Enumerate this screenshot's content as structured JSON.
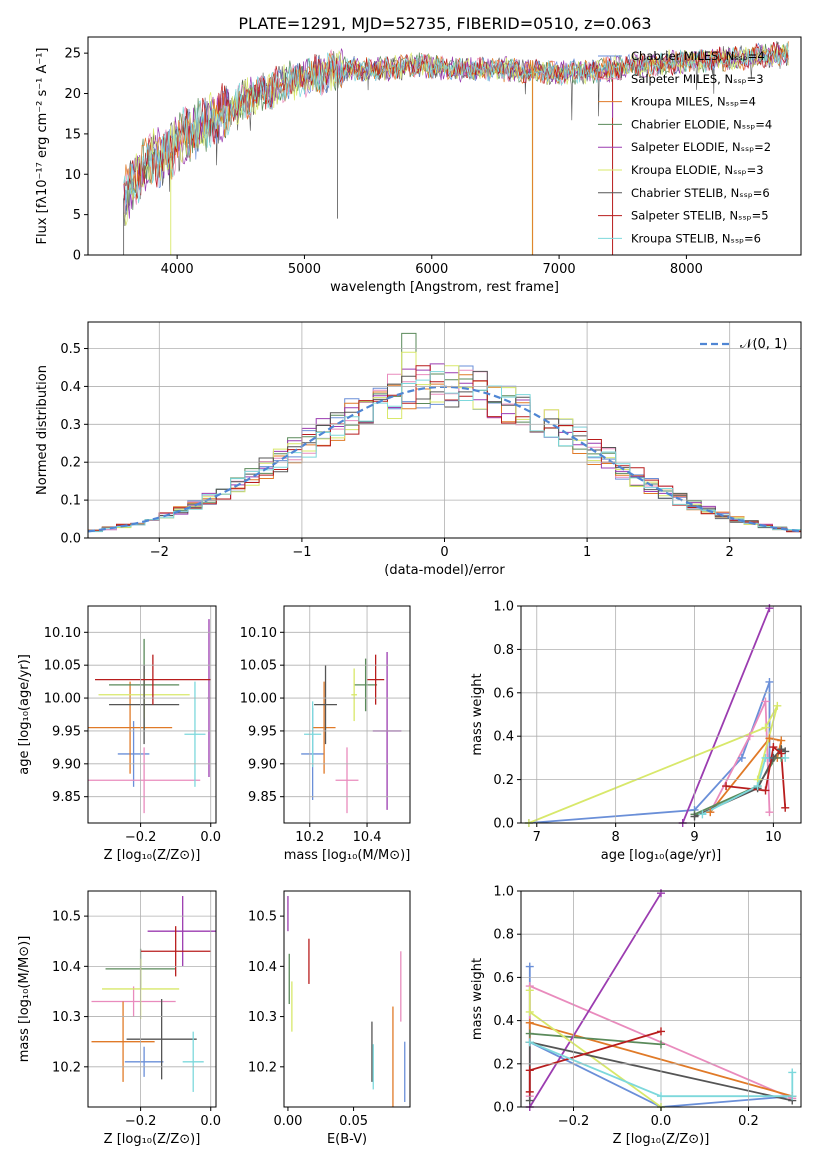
{
  "figure_title": "PLATE=1291, MJD=52735, FIBERID=0510, z=0.063",
  "series_colors": [
    "#6a8fd8",
    "#e98bbd",
    "#e07a28",
    "#5a8a5a",
    "#9b3cb0",
    "#d8e86a",
    "#555555",
    "#b81d1d",
    "#7dd8dc"
  ],
  "chart_data": [
    {
      "type": "line",
      "panel": "spectrum",
      "xlabel": "wavelength [Angstrom, rest frame]",
      "ylabel": "Flux [fλ10⁻¹⁷ erg cm⁻² s⁻¹ A⁻¹]",
      "xlim": [
        3300,
        8900
      ],
      "ylim": [
        0,
        27
      ],
      "xticks": [
        4000,
        5000,
        6000,
        7000,
        8000
      ],
      "yticks": [
        0,
        5,
        10,
        15,
        20,
        25
      ],
      "grid": false,
      "legend": "top-right",
      "series": [
        {
          "name": "Chabrier MILES, Nₛₛₚ=4"
        },
        {
          "name": "Salpeter MILES, Nₛₛₚ=3"
        },
        {
          "name": "Kroupa MILES, Nₛₛₚ=4"
        },
        {
          "name": "Chabrier ELODIE, Nₛₛₚ=4"
        },
        {
          "name": "Salpeter ELODIE, Nₛₛₚ=2"
        },
        {
          "name": "Kroupa ELODIE, Nₛₛₚ=3"
        },
        {
          "name": "Chabrier STELIB, Nₛₛₚ=6"
        },
        {
          "name": "Salpeter STELIB, Nₛₛₚ=5"
        },
        {
          "name": "Kroupa STELIB, Nₛₛₚ=6"
        }
      ],
      "continuum": [
        [
          3580,
          7
        ],
        [
          3700,
          10
        ],
        [
          3800,
          12
        ],
        [
          3900,
          12
        ],
        [
          4000,
          14
        ],
        [
          4200,
          16
        ],
        [
          4500,
          19
        ],
        [
          4800,
          21
        ],
        [
          5000,
          22
        ],
        [
          5300,
          23
        ],
        [
          5600,
          23
        ],
        [
          5900,
          23.5
        ],
        [
          6200,
          23
        ],
        [
          6600,
          23
        ],
        [
          7000,
          22.5
        ],
        [
          7400,
          23
        ],
        [
          7600,
          23.5
        ],
        [
          8000,
          24
        ],
        [
          8500,
          24.5
        ],
        [
          8800,
          25
        ]
      ],
      "gaps": [
        [
          6790,
          0
        ],
        [
          7420,
          0
        ]
      ]
    },
    {
      "type": "histogram",
      "panel": "residuals",
      "xlabel": "(data-model)/error",
      "ylabel": "Normed distribution",
      "xlim": [
        -2.5,
        2.5
      ],
      "ylim": [
        0,
        0.57
      ],
      "xticks": [
        -2,
        -1,
        0,
        1,
        2
      ],
      "yticks": [
        0.0,
        0.1,
        0.2,
        0.3,
        0.4,
        0.5
      ],
      "grid": true,
      "legend": "top-right",
      "legend_entry": "𝒩(0, 1)",
      "bin_width": 0.1
    },
    {
      "type": "scatter",
      "panel": "age-vs-Z",
      "xlabel": "Z [log₁₀(Z/Z⊙)]",
      "ylabel": "age  [log₁₀(age/yr)]",
      "xlim": [
        -0.35,
        0.015
      ],
      "ylim": [
        9.81,
        10.14
      ],
      "xticks": [
        -0.2,
        0.0
      ],
      "yticks": [
        9.85,
        9.9,
        9.95,
        10.0,
        10.05,
        10.1
      ],
      "grid": true,
      "points": [
        {
          "x": -0.22,
          "y": 9.915,
          "xerr": 0.045,
          "yerr": 0.05
        },
        {
          "x": -0.19,
          "y": 9.875,
          "xerr": 0.16,
          "yerr": 0.05
        },
        {
          "x": -0.23,
          "y": 9.955,
          "xerr": 0.12,
          "yerr": 0.07
        },
        {
          "x": -0.19,
          "y": 10.02,
          "xerr": 0.1,
          "yerr": 0.07
        },
        {
          "x": -0.005,
          "y": 10.0,
          "xerr": 0.005,
          "yerr": 0.12
        },
        {
          "x": -0.19,
          "y": 10.005,
          "xerr": 0.13,
          "yerr": 0.035
        },
        {
          "x": -0.19,
          "y": 9.99,
          "xerr": 0.1,
          "yerr": 0.06
        },
        {
          "x": -0.165,
          "y": 10.028,
          "xerr": 0.165,
          "yerr": 0.038
        },
        {
          "x": -0.045,
          "y": 9.945,
          "xerr": 0.03,
          "yerr": 0.08
        }
      ]
    },
    {
      "type": "scatter",
      "panel": "age-vs-mass",
      "xlabel": "mass [log₁₀(M/M⊙)]",
      "ylabel": "",
      "xlim": [
        10.11,
        10.55
      ],
      "ylim": [
        9.81,
        10.14
      ],
      "xticks": [
        10.2,
        10.4
      ],
      "yticks": [
        9.85,
        9.9,
        9.95,
        10.0,
        10.05,
        10.1
      ],
      "grid": true,
      "points": [
        {
          "x": 10.21,
          "y": 9.915,
          "xerr": 0.04,
          "yerr": 0.07
        },
        {
          "x": 10.33,
          "y": 9.875,
          "xerr": 0.04,
          "yerr": 0.05
        },
        {
          "x": 10.25,
          "y": 9.955,
          "xerr": 0.04,
          "yerr": 0.07
        },
        {
          "x": 10.395,
          "y": 10.02,
          "xerr": 0.04,
          "yerr": 0.04
        },
        {
          "x": 10.47,
          "y": 9.95,
          "xerr": 0.05,
          "yerr": 0.12
        },
        {
          "x": 10.355,
          "y": 10.005,
          "xerr": 0.01,
          "yerr": 0.04
        },
        {
          "x": 10.255,
          "y": 9.99,
          "xerr": 0.04,
          "yerr": 0.06
        },
        {
          "x": 10.43,
          "y": 10.028,
          "xerr": 0.03,
          "yerr": 0.038
        },
        {
          "x": 10.21,
          "y": 9.945,
          "xerr": 0.03,
          "yerr": 0.05
        }
      ]
    },
    {
      "type": "line",
      "panel": "weight-vs-age",
      "xlabel": "age  [log₁₀(age/yr)]",
      "ylabel": "mass weight",
      "xlim": [
        6.8,
        10.35
      ],
      "ylim": [
        0,
        1.0
      ],
      "xticks": [
        7,
        8,
        9,
        10
      ],
      "yticks": [
        0.0,
        0.2,
        0.4,
        0.6,
        0.8,
        1.0
      ],
      "grid": true,
      "series": [
        {
          "x": [
            6.9,
            9.0,
            9.6,
            9.95,
            9.95
          ],
          "y": [
            0.0,
            0.06,
            0.3,
            0.65,
            0.3
          ]
        },
        {
          "x": [
            9.2,
            9.7,
            9.9,
            9.95
          ],
          "y": [
            0.05,
            0.4,
            0.56,
            0.05
          ]
        },
        {
          "x": [
            9.2,
            9.95,
            10.1,
            10.05
          ],
          "y": [
            0.05,
            0.39,
            0.38,
            0.3
          ]
        },
        {
          "x": [
            9.0,
            9.8,
            10.1,
            10.1
          ],
          "y": [
            0.04,
            0.17,
            0.34,
            0.3
          ]
        },
        {
          "x": [
            8.85,
            9.95
          ],
          "y": [
            0.0,
            0.99
          ]
        },
        {
          "x": [
            6.9,
            9.9,
            10.05,
            9.8
          ],
          "y": [
            0.0,
            0.44,
            0.54,
            0.2
          ]
        },
        {
          "x": [
            9.0,
            9.8,
            10.0,
            10.1,
            10.15
          ],
          "y": [
            0.03,
            0.16,
            0.3,
            0.34,
            0.33
          ]
        },
        {
          "x": [
            9.4,
            9.9,
            10.0,
            10.1,
            10.15
          ],
          "y": [
            0.17,
            0.15,
            0.35,
            0.32,
            0.07
          ]
        },
        {
          "x": [
            9.1,
            9.8,
            9.9,
            10.15
          ],
          "y": [
            0.04,
            0.17,
            0.3,
            0.3
          ]
        }
      ]
    },
    {
      "type": "scatter",
      "panel": "mass-vs-Z",
      "xlabel": "Z [log₁₀(Z/Z⊙)]",
      "ylabel": "mass [log₁₀(M/M⊙)]",
      "xlim": [
        -0.35,
        0.015
      ],
      "ylim": [
        10.12,
        10.55
      ],
      "xticks": [
        -0.2,
        0.0
      ],
      "yticks": [
        10.2,
        10.3,
        10.4,
        10.5
      ],
      "grid": true,
      "points": [
        {
          "x": -0.19,
          "y": 10.21,
          "xerr": 0.055,
          "yerr": 0.03
        },
        {
          "x": -0.22,
          "y": 10.33,
          "xerr": 0.12,
          "yerr": 0.03
        },
        {
          "x": -0.25,
          "y": 10.25,
          "xerr": 0.09,
          "yerr": 0.08
        },
        {
          "x": -0.2,
          "y": 10.395,
          "xerr": 0.1,
          "yerr": 0.04
        },
        {
          "x": -0.08,
          "y": 10.47,
          "xerr": 0.1,
          "yerr": 0.07
        },
        {
          "x": -0.2,
          "y": 10.355,
          "xerr": 0.11,
          "yerr": 0.06
        },
        {
          "x": -0.14,
          "y": 10.255,
          "xerr": 0.1,
          "yerr": 0.08
        },
        {
          "x": -0.1,
          "y": 10.43,
          "xerr": 0.1,
          "yerr": 0.05
        },
        {
          "x": -0.05,
          "y": 10.21,
          "xerr": 0.03,
          "yerr": 0.06
        }
      ]
    },
    {
      "type": "scatter",
      "panel": "mass-vs-EBV",
      "xlabel": "E(B-V)",
      "ylabel": "",
      "xlim": [
        -0.003,
        0.093
      ],
      "ylim": [
        10.12,
        10.55
      ],
      "xticks": [
        0.0,
        0.05
      ],
      "yticks": [
        10.2,
        10.3,
        10.4,
        10.5
      ],
      "grid": false,
      "points": [
        {
          "x": 0.089,
          "y": 10.19,
          "xerr": 0,
          "yerr": 0.06
        },
        {
          "x": 0.086,
          "y": 10.36,
          "xerr": 0,
          "yerr": 0.07
        },
        {
          "x": 0.08,
          "y": 10.22,
          "xerr": 0,
          "yerr": 0.1
        },
        {
          "x": 0.001,
          "y": 10.375,
          "xerr": 0,
          "yerr": 0.05
        },
        {
          "x": 0.0,
          "y": 10.505,
          "xerr": 0,
          "yerr": 0.035
        },
        {
          "x": 0.003,
          "y": 10.32,
          "xerr": 0,
          "yerr": 0.05
        },
        {
          "x": 0.064,
          "y": 10.23,
          "xerr": 0,
          "yerr": 0.06
        },
        {
          "x": 0.016,
          "y": 10.41,
          "xerr": 0,
          "yerr": 0.045
        },
        {
          "x": 0.065,
          "y": 10.2,
          "xerr": 0,
          "yerr": 0.045
        }
      ]
    },
    {
      "type": "line",
      "panel": "weight-vs-Z",
      "xlabel": "Z [log₁₀(Z/Z⊙)]",
      "ylabel": "mass weight",
      "xlim": [
        -0.32,
        0.32
      ],
      "ylim": [
        0,
        1.0
      ],
      "xticks": [
        -0.2,
        0.0,
        0.2
      ],
      "yticks": [
        0.0,
        0.2,
        0.4,
        0.6,
        0.8,
        1.0
      ],
      "grid": true,
      "series": [
        {
          "x": [
            -0.3,
            -0.3,
            0.0,
            0.3
          ],
          "y": [
            0.65,
            0.3,
            0.0,
            0.05
          ]
        },
        {
          "x": [
            -0.3,
            -0.3,
            0.3
          ],
          "y": [
            0.05,
            0.56,
            0.04
          ]
        },
        {
          "x": [
            -0.3,
            -0.3,
            0.3
          ],
          "y": [
            0.3,
            0.39,
            0.05
          ]
        },
        {
          "x": [
            -0.3,
            0.0
          ],
          "y": [
            0.34,
            0.29
          ]
        },
        {
          "x": [
            -0.3,
            0.0
          ],
          "y": [
            0.0,
            0.99
          ]
        },
        {
          "x": [
            -0.3,
            -0.3,
            0.0
          ],
          "y": [
            0.54,
            0.44,
            0.0
          ]
        },
        {
          "x": [
            -0.3,
            -0.3,
            0.3
          ],
          "y": [
            0.03,
            0.3,
            0.03
          ]
        },
        {
          "x": [
            -0.3,
            -0.3,
            0.0
          ],
          "y": [
            0.07,
            0.17,
            0.35
          ]
        },
        {
          "x": [
            -0.3,
            0.0,
            0.3,
            0.3
          ],
          "y": [
            0.3,
            0.05,
            0.05,
            0.16
          ]
        }
      ]
    }
  ]
}
